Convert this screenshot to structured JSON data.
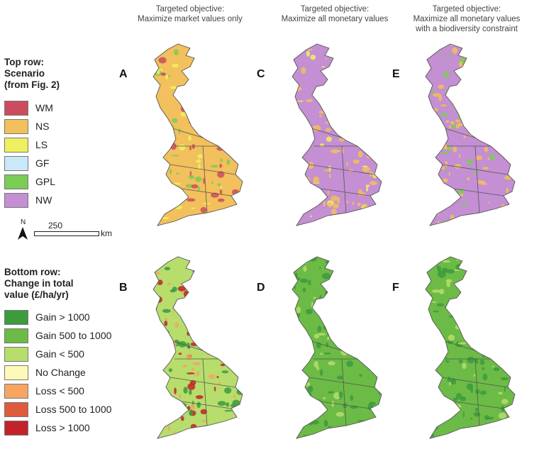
{
  "columns": [
    {
      "line1": "Targeted objective:",
      "line2": "Maximize market values only",
      "line3": ""
    },
    {
      "line1": "Targeted objective:",
      "line2": "Maximize all monetary values",
      "line3": ""
    },
    {
      "line1": "Targeted objective:",
      "line2": "Maximize all monetary values",
      "line3": "with a biodiversity constraint"
    }
  ],
  "top_legend": {
    "heading1": "Top row:",
    "heading2": "Scenario",
    "heading3": "(from Fig. 2)",
    "items": [
      {
        "label": "WM",
        "color": "#cc4b5e"
      },
      {
        "label": "NS",
        "color": "#f2c05c"
      },
      {
        "label": "LS",
        "color": "#eef060"
      },
      {
        "label": "GF",
        "color": "#c9e9f8"
      },
      {
        "label": "GPL",
        "color": "#7bcc56"
      },
      {
        "label": "NW",
        "color": "#c48fd3"
      }
    ]
  },
  "scale_bar": {
    "north": "N",
    "distance": "250",
    "unit": "km"
  },
  "bottom_legend": {
    "heading1": "Bottom row:",
    "heading2": "Change in total",
    "heading3": "value (£/ha/yr)",
    "items": [
      {
        "label": "Gain > 1000",
        "color": "#3d9a3d"
      },
      {
        "label": "Gain 500 to 1000",
        "color": "#6cbb46"
      },
      {
        "label": "Gain < 500",
        "color": "#b7dd6c"
      },
      {
        "label": "No Change",
        "color": "#fdf9b8"
      },
      {
        "label": "Loss < 500",
        "color": "#f6a563"
      },
      {
        "label": "Loss 500 to 1000",
        "color": "#e05a3c"
      },
      {
        "label": "Loss > 1000",
        "color": "#c3222b"
      }
    ]
  },
  "panels": [
    {
      "letter": "A",
      "base": "#f2c05c",
      "patches": [
        "#cc4b5e",
        "#7bcc56",
        "#eef060"
      ]
    },
    {
      "letter": "C",
      "base": "#c48fd3",
      "patches": [
        "#f2c05c",
        "#f2c05c",
        "#eef060"
      ]
    },
    {
      "letter": "E",
      "base": "#c48fd3",
      "patches": [
        "#f2c05c",
        "#7bcc56",
        "#f2c05c"
      ]
    },
    {
      "letter": "B",
      "base": "#b7dd6c",
      "patches": [
        "#f6a563",
        "#c3222b",
        "#3d9a3d"
      ]
    },
    {
      "letter": "D",
      "base": "#6cbb46",
      "patches": [
        "#3d9a3d",
        "#b7dd6c",
        "#3d9a3d"
      ]
    },
    {
      "letter": "F",
      "base": "#6cbb46",
      "patches": [
        "#3d9a3d",
        "#b7dd6c",
        "#3d9a3d"
      ]
    }
  ]
}
